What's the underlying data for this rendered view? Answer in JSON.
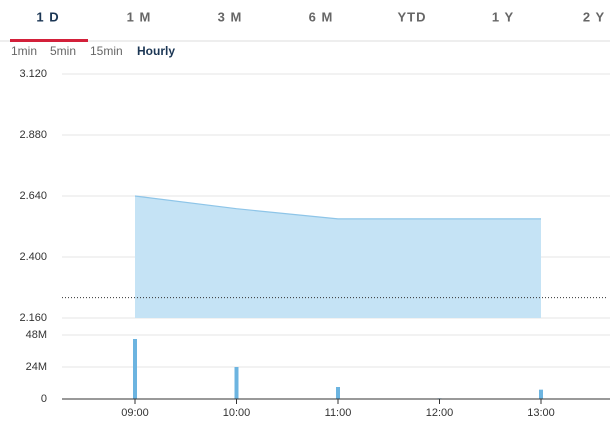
{
  "ui": {
    "tabs": [
      "1 D",
      "1 M",
      "3 M",
      "6 M",
      "YTD",
      "1 Y",
      "2 Y"
    ],
    "active_tab": 0,
    "subtabs": [
      "1min",
      "5min",
      "15min",
      "Hourly"
    ],
    "active_subtab": 3
  },
  "chart_data": [
    {
      "type": "area",
      "values": [
        2.64,
        2.59,
        2.55,
        2.55,
        2.55
      ],
      "color": "#c5e3f5",
      "line_color": "#8ec5e8",
      "ylim": [
        2.16,
        3.12
      ],
      "yticks": [
        {
          "value": 2.16,
          "label": "2.160"
        },
        {
          "value": 2.4,
          "label": "2.400"
        },
        {
          "value": 2.64,
          "label": "2.640"
        },
        {
          "value": 2.88,
          "label": "2.880"
        },
        {
          "value": 3.12,
          "label": "3.120"
        }
      ],
      "reference_line": 2.24,
      "grid": true
    },
    {
      "type": "bar",
      "categories": [
        "09:00",
        "10:00",
        "11:00",
        "12:00",
        "13:00"
      ],
      "values": [
        45000000,
        24000000,
        9000000,
        500000,
        7000000
      ],
      "color": "#6cb4e0",
      "ylim": [
        0,
        48000000
      ],
      "yticks": [
        0,
        {
          "value": 24000000,
          "label": "24M"
        },
        {
          "value": 48000000,
          "label": "48M"
        }
      ],
      "grid": true
    }
  ]
}
